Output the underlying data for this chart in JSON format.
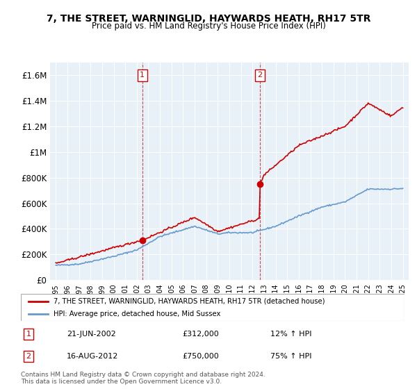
{
  "title": "7, THE STREET, WARNINGLID, HAYWARDS HEATH, RH17 5TR",
  "subtitle": "Price paid vs. HM Land Registry's House Price Index (HPI)",
  "legend_line1": "7, THE STREET, WARNINGLID, HAYWARDS HEATH, RH17 5TR (detached house)",
  "legend_line2": "HPI: Average price, detached house, Mid Sussex",
  "annotation1_label": "1",
  "annotation1_date": "21-JUN-2002",
  "annotation1_price": 312000,
  "annotation1_hpi": "12% ↑ HPI",
  "annotation2_label": "2",
  "annotation2_date": "16-AUG-2012",
  "annotation2_price": 750000,
  "annotation2_hpi": "75% ↑ HPI",
  "footer": "Contains HM Land Registry data © Crown copyright and database right 2024.\nThis data is licensed under the Open Government Licence v3.0.",
  "hpi_color": "#6699cc",
  "price_color": "#cc0000",
  "annotation_color": "#cc0000",
  "background_color": "#ffffff",
  "plot_bg_color": "#e8f0f8",
  "ylim": [
    0,
    1700000
  ],
  "yticks": [
    0,
    200000,
    400000,
    600000,
    800000,
    1000000,
    1200000,
    1400000,
    1600000
  ],
  "ytick_labels": [
    "£0",
    "£200K",
    "£400K",
    "£600K",
    "£800K",
    "£1M",
    "£1.2M",
    "£1.4M",
    "£1.6M"
  ]
}
